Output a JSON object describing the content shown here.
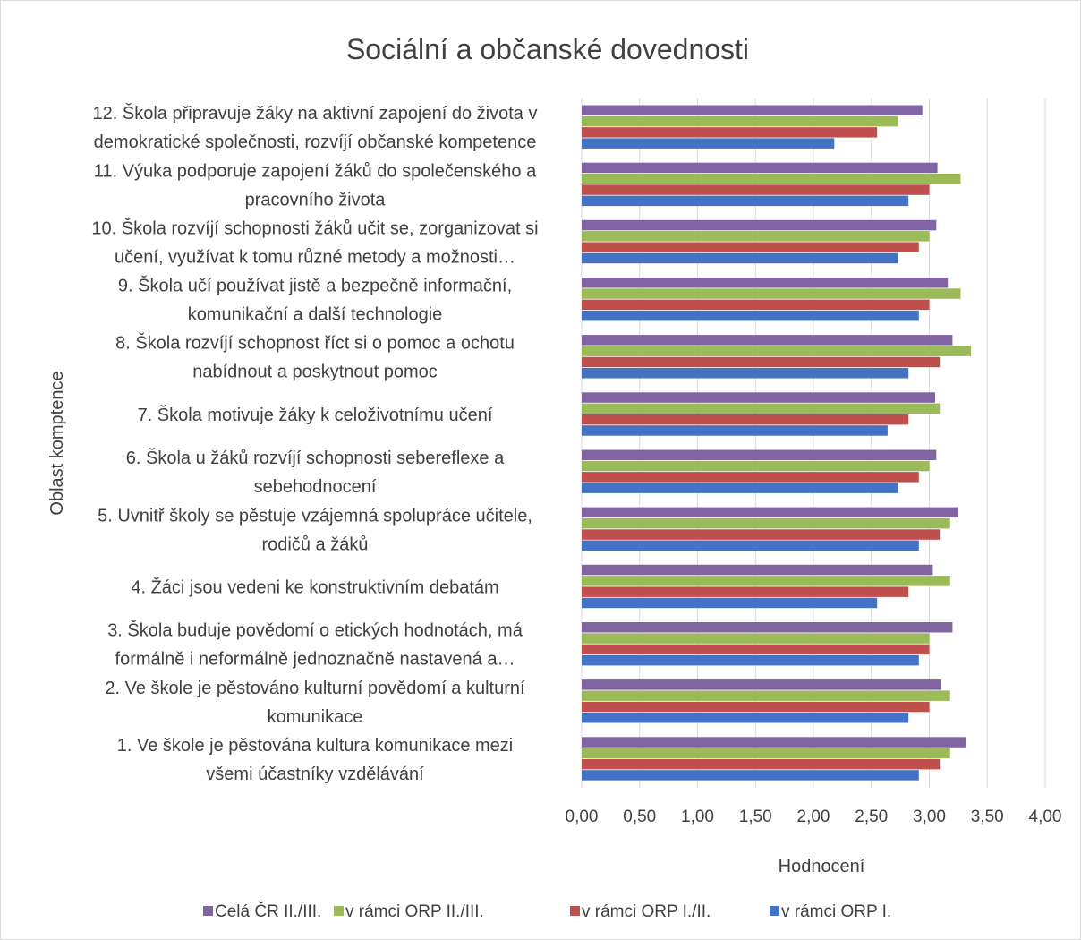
{
  "chart_data": {
    "type": "bar",
    "orientation": "horizontal",
    "title": "Sociální a občanské dovednosti",
    "xlabel": "Hodnocení",
    "ylabel": "Oblast komptence",
    "xlim": [
      0,
      4
    ],
    "xticks": [
      "0,00",
      "0,50",
      "1,00",
      "1,50",
      "2,00",
      "2,50",
      "3,00",
      "3,50",
      "4,00"
    ],
    "grid": true,
    "legend_position": "bottom",
    "categories": [
      [
        "1. Ve škole je pěstována kultura komunikace mezi",
        "všemi účastníky vzdělávání"
      ],
      [
        "2. Ve škole je pěstováno kulturní povědomí a kulturní",
        "komunikace"
      ],
      [
        "3. Škola buduje povědomí o etických hodnotách, má",
        "formálně i neformálně jednoznačně nastavená a…"
      ],
      [
        "4. Žáci jsou vedeni ke konstruktivním debatám"
      ],
      [
        "5. Uvnitř školy se pěstuje vzájemná spolupráce učitele,",
        "rodičů a žáků"
      ],
      [
        "6. Škola u žáků rozvíjí schopnosti sebereflexe a",
        "sebehodnocení"
      ],
      [
        "7. Škola motivuje žáky k celoživotnímu učení"
      ],
      [
        "8. Škola rozvíjí schopnost říct si o pomoc a ochotu",
        "nabídnout a poskytnout pomoc"
      ],
      [
        "9. Škola učí používat jistě a bezpečně informační,",
        "komunikační a další technologie"
      ],
      [
        "10. Škola rozvíjí schopnosti žáků učit se, zorganizovat si",
        "učení, využívat k tomu různé metody a možnosti…"
      ],
      [
        "11. Výuka podporuje zapojení žáků do společenského a",
        "pracovního života"
      ],
      [
        "12. Škola připravuje žáky na aktivní zapojení do života v",
        "demokratické společnosti, rozvíjí občanské kompetence"
      ]
    ],
    "series": [
      {
        "name": "v rámci ORP I.",
        "color": "#4472C4",
        "values": [
          2.91,
          2.82,
          2.91,
          2.55,
          2.91,
          2.73,
          2.64,
          2.82,
          2.91,
          2.73,
          2.82,
          2.18
        ]
      },
      {
        "name": "v rámci ORP I./II.",
        "color": "#C0504D",
        "values": [
          3.09,
          3.0,
          3.0,
          2.82,
          3.09,
          2.91,
          2.82,
          3.09,
          3.0,
          2.91,
          3.0,
          2.55
        ]
      },
      {
        "name": "v rámci ORP II./III.",
        "color": "#9BBB59",
        "values": [
          3.18,
          3.18,
          3.0,
          3.18,
          3.18,
          3.0,
          3.09,
          3.36,
          3.27,
          3.0,
          3.27,
          2.73
        ]
      },
      {
        "name": "Celá ČR II./III.",
        "color": "#8064A2",
        "values": [
          3.32,
          3.1,
          3.2,
          3.03,
          3.25,
          3.06,
          3.05,
          3.2,
          3.16,
          3.06,
          3.07,
          2.94
        ]
      }
    ],
    "legend_order": [
      3,
      2,
      1,
      0
    ]
  }
}
